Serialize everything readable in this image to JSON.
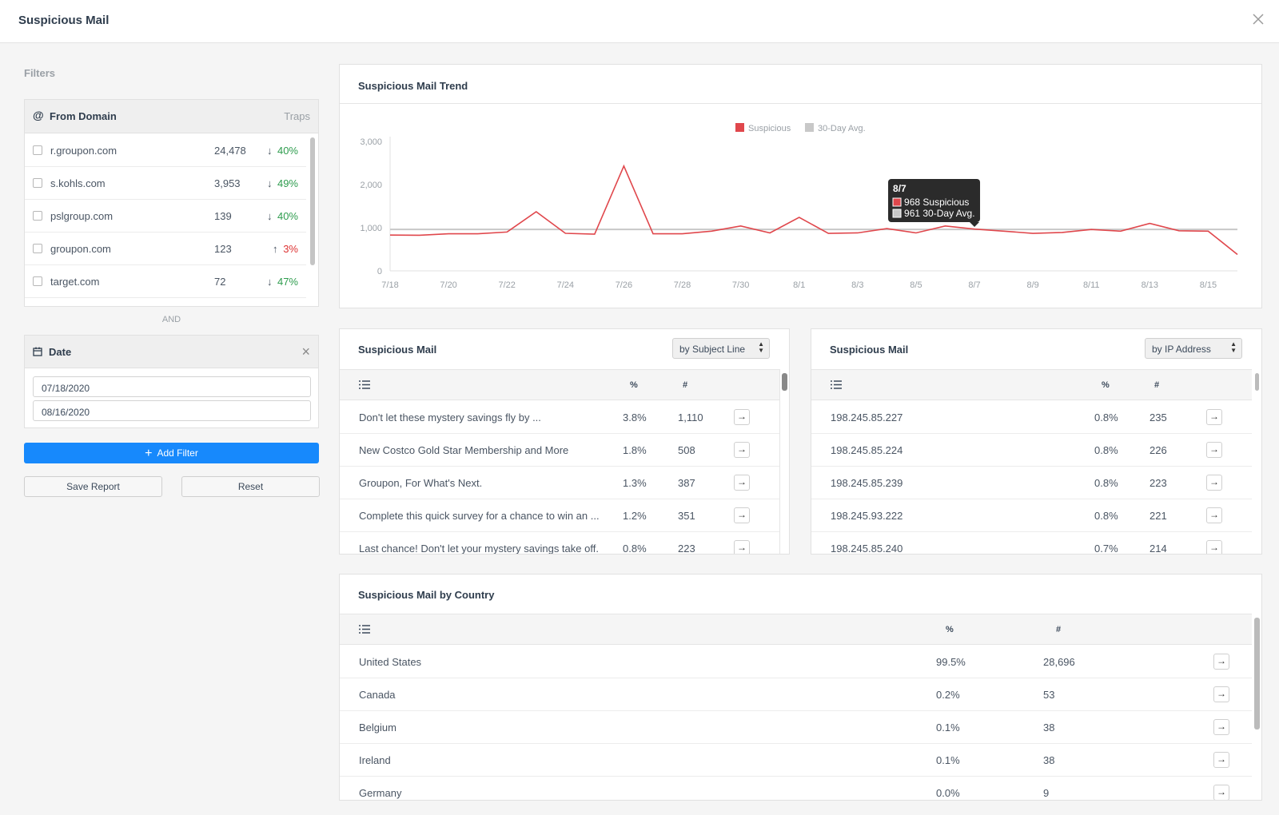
{
  "header": {
    "title": "Suspicious Mail",
    "close_icon": "close-icon"
  },
  "filters": {
    "label": "Filters",
    "from_domain": {
      "icon": "at-icon",
      "title": "From Domain",
      "col": "Traps",
      "rows": [
        {
          "domain": "r.groupon.com",
          "traps": "24,478",
          "change": "40%",
          "dir": "down"
        },
        {
          "domain": "s.kohls.com",
          "traps": "3,953",
          "change": "49%",
          "dir": "down"
        },
        {
          "domain": "pslgroup.com",
          "traps": "139",
          "change": "40%",
          "dir": "down"
        },
        {
          "domain": "groupon.com",
          "traps": "123",
          "change": "3%",
          "dir": "up"
        },
        {
          "domain": "target.com",
          "traps": "72",
          "change": "47%",
          "dir": "down"
        }
      ]
    },
    "and_label": "AND",
    "date": {
      "icon": "calendar-icon",
      "title": "Date",
      "close": "×",
      "start": "07/18/2020",
      "end": "08/16/2020"
    },
    "add_filter": "Add Filter",
    "save_report": "Save Report",
    "reset": "Reset"
  },
  "trend": {
    "title": "Suspicious Mail Trend"
  },
  "chart_data": {
    "type": "line",
    "title": "Suspicious Mail Trend",
    "x": [
      "7/18",
      "7/19",
      "7/20",
      "7/21",
      "7/22",
      "7/23",
      "7/24",
      "7/25",
      "7/26",
      "7/27",
      "7/28",
      "7/29",
      "7/30",
      "7/31",
      "8/1",
      "8/2",
      "8/3",
      "8/4",
      "8/5",
      "8/6",
      "8/7",
      "8/8",
      "8/9",
      "8/10",
      "8/11",
      "8/12",
      "8/13",
      "8/14",
      "8/15",
      "8/16"
    ],
    "xticks": [
      "7/18",
      "7/20",
      "7/22",
      "7/24",
      "7/26",
      "7/28",
      "7/30",
      "8/1",
      "8/3",
      "8/5",
      "8/7",
      "8/9",
      "8/11",
      "8/13",
      "8/15"
    ],
    "yticks": [
      "0",
      "1,000",
      "2,000",
      "3,000"
    ],
    "ylim": [
      0,
      3000
    ],
    "series": [
      {
        "name": "Suspicious",
        "color": "#e0474c",
        "values": [
          830,
          825,
          860,
          860,
          900,
          1370,
          870,
          850,
          2430,
          860,
          860,
          920,
          1040,
          880,
          1240,
          870,
          880,
          980,
          880,
          1040,
          968,
          920,
          870,
          890,
          960,
          920,
          1100,
          930,
          920,
          380
        ]
      },
      {
        "name": "30-Day Avg.",
        "color": "#c8c8c8",
        "values": [
          961,
          961,
          961,
          961,
          961,
          961,
          961,
          961,
          961,
          961,
          961,
          961,
          961,
          961,
          961,
          961,
          961,
          961,
          961,
          961,
          961,
          961,
          961,
          961,
          961,
          961,
          961,
          961,
          961,
          961
        ]
      }
    ],
    "legend": "top-center",
    "tooltip": {
      "date": "8/7",
      "suspicious": "968 Suspicious",
      "avg": "961 30-Day Avg."
    }
  },
  "subject": {
    "title": "Suspicious Mail",
    "select": "by Subject Line",
    "cols": {
      "list_icon": "list-icon",
      "pct": "%",
      "num": "#"
    },
    "rows": [
      {
        "label": "Don't let these mystery savings fly by ...",
        "pct": "3.8%",
        "num": "1,110"
      },
      {
        "label": "New Costco Gold Star Membership and More",
        "pct": "1.8%",
        "num": "508"
      },
      {
        "label": "Groupon, For What's Next.",
        "pct": "1.3%",
        "num": "387"
      },
      {
        "label": "Complete this quick survey for a chance to win an ...",
        "pct": "1.2%",
        "num": "351"
      },
      {
        "label": "Last chance! Don't let your mystery savings take off.",
        "pct": "0.8%",
        "num": "223"
      }
    ]
  },
  "ip": {
    "title": "Suspicious Mail",
    "select": "by IP Address",
    "cols": {
      "list_icon": "list-icon",
      "pct": "%",
      "num": "#"
    },
    "rows": [
      {
        "label": "198.245.85.227",
        "pct": "0.8%",
        "num": "235"
      },
      {
        "label": "198.245.85.224",
        "pct": "0.8%",
        "num": "226"
      },
      {
        "label": "198.245.85.239",
        "pct": "0.8%",
        "num": "223"
      },
      {
        "label": "198.245.93.222",
        "pct": "0.8%",
        "num": "221"
      },
      {
        "label": "198.245.85.240",
        "pct": "0.7%",
        "num": "214"
      }
    ]
  },
  "country": {
    "title": "Suspicious Mail by Country",
    "cols": {
      "list_icon": "list-icon",
      "pct": "%",
      "num": "#"
    },
    "rows": [
      {
        "label": "United States",
        "pct": "99.5%",
        "num": "28,696"
      },
      {
        "label": "Canada",
        "pct": "0.2%",
        "num": "53"
      },
      {
        "label": "Belgium",
        "pct": "0.1%",
        "num": "38"
      },
      {
        "label": "Ireland",
        "pct": "0.1%",
        "num": "38"
      },
      {
        "label": "Germany",
        "pct": "0.0%",
        "num": "9"
      }
    ]
  },
  "colors": {
    "accent": "#1789fc",
    "suspicious": "#e0474c",
    "avg": "#c8c8c8",
    "up": "#d33",
    "down": "#2e9c4e"
  }
}
